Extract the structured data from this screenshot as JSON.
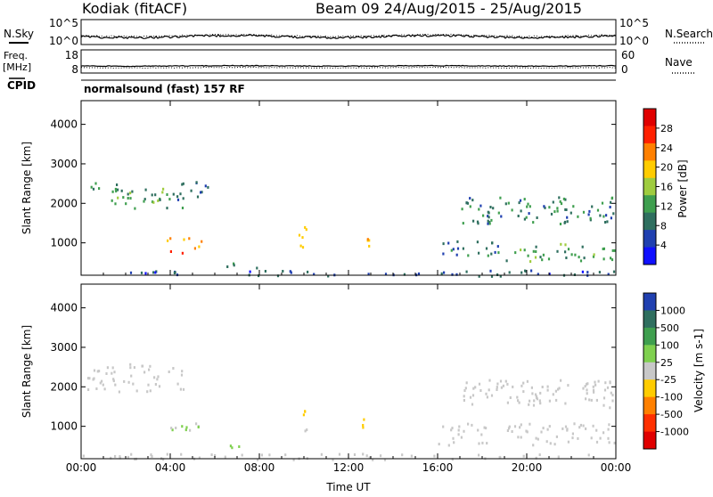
{
  "header": {
    "station": "Kodiak (fitACF)",
    "beam_date": "Beam 09 24/Aug/2015 - 25/Aug/2015"
  },
  "noise_panel": {
    "left_label": "N.Sky",
    "right_label": "N.Search",
    "ticks_left": [
      "10^5",
      "10^0"
    ],
    "ticks_right": [
      "10^5",
      "10^0"
    ]
  },
  "freq_panel": {
    "left_label_1": "Freq.",
    "left_label_2": "[MHz]",
    "right_label": "Nave",
    "ticks_left": [
      "18",
      "8"
    ],
    "ticks_right": [
      "60",
      "0"
    ]
  },
  "cpid_panel": {
    "left_label": "CPID",
    "mode": "normalsound (fast) 157 RF"
  },
  "colors": {
    "power_scale": [
      "#1010ff",
      "#2040b0",
      "#2f6f5f",
      "#3f9f4f",
      "#9fcc3f",
      "#ffcc00",
      "#ff8000",
      "#ff2000",
      "#e00000"
    ],
    "velocity_scale": [
      "#2040b0",
      "#2f6f5f",
      "#3f9f4f",
      "#7fd04f",
      "#c8c8c8",
      "#ffcc00",
      "#ff8000",
      "#ff3000",
      "#e00000"
    ]
  },
  "chart_data": [
    {
      "type": "heatmap",
      "name": "power",
      "ylabel": "Slant Range [km]",
      "yticks": [
        "1000",
        "2000",
        "3000",
        "4000"
      ],
      "ylim": [
        180,
        4600
      ],
      "xlim": [
        0,
        24
      ],
      "colorbar_label": "Power [dB]",
      "colorbar_ticks": [
        "4",
        "8",
        "12",
        "16",
        "20",
        "24",
        "28"
      ],
      "features": [
        {
          "x0": 0.2,
          "x1": 2.2,
          "y0": 2300,
          "y1": 2600,
          "value": 10
        },
        {
          "x0": 1.2,
          "x1": 4.6,
          "y0": 1900,
          "y1": 2400,
          "value": 12
        },
        {
          "x0": 4.0,
          "x1": 5.7,
          "y0": 2100,
          "y1": 2600,
          "value": 8
        },
        {
          "x0": 3.8,
          "x1": 5.4,
          "y0": 750,
          "y1": 1150,
          "value": 22
        },
        {
          "x0": 6.5,
          "x1": 8.0,
          "y0": 380,
          "y1": 560,
          "value": 10
        },
        {
          "x0": 9.7,
          "x1": 10.1,
          "y0": 900,
          "y1": 1500,
          "value": 20
        },
        {
          "x0": 12.5,
          "x1": 12.9,
          "y0": 900,
          "y1": 1300,
          "value": 20
        },
        {
          "x0": 16.0,
          "x1": 19.0,
          "y0": 700,
          "y1": 1100,
          "value": 8
        },
        {
          "x0": 19.0,
          "x1": 24.0,
          "y0": 550,
          "y1": 1000,
          "value": 12
        },
        {
          "x0": 17.0,
          "x1": 24.0,
          "y0": 1500,
          "y1": 2200,
          "value": 10
        },
        {
          "x0": 0.0,
          "x1": 24.0,
          "y0": 180,
          "y1": 330,
          "value": 6
        }
      ]
    },
    {
      "type": "heatmap",
      "name": "velocity",
      "ylabel": "Slant Range [km]",
      "yticks": [
        "1000",
        "2000",
        "3000",
        "4000"
      ],
      "ylim": [
        180,
        4600
      ],
      "xlim": [
        0,
        24
      ],
      "xlabel": "Time UT",
      "xticks": [
        "00:00",
        "04:00",
        "08:00",
        "12:00",
        "16:00",
        "20:00",
        "00:00"
      ],
      "colorbar_label": "Velocity [m s-1]",
      "colorbar_ticks": [
        "1000",
        "500",
        "100",
        "25",
        "-25",
        "-100",
        "-500",
        "-1000"
      ],
      "features": [
        {
          "x0": 0.2,
          "x1": 4.6,
          "y0": 1900,
          "y1": 2600,
          "value": 0
        },
        {
          "x0": 3.8,
          "x1": 5.4,
          "y0": 750,
          "y1": 1150,
          "value": 150
        },
        {
          "x0": 6.5,
          "x1": 8.0,
          "y0": 380,
          "y1": 560,
          "value": 150
        },
        {
          "x0": 9.7,
          "x1": 10.1,
          "y0": 900,
          "y1": 1500,
          "value": -150
        },
        {
          "x0": 12.5,
          "x1": 12.9,
          "y0": 900,
          "y1": 1300,
          "value": -150
        },
        {
          "x0": 16.0,
          "x1": 24.0,
          "y0": 550,
          "y1": 1100,
          "value": 0
        },
        {
          "x0": 17.0,
          "x1": 24.0,
          "y0": 1500,
          "y1": 2200,
          "value": 0
        },
        {
          "x0": 0.0,
          "x1": 24.0,
          "y0": 180,
          "y1": 330,
          "value": -50
        }
      ]
    }
  ]
}
